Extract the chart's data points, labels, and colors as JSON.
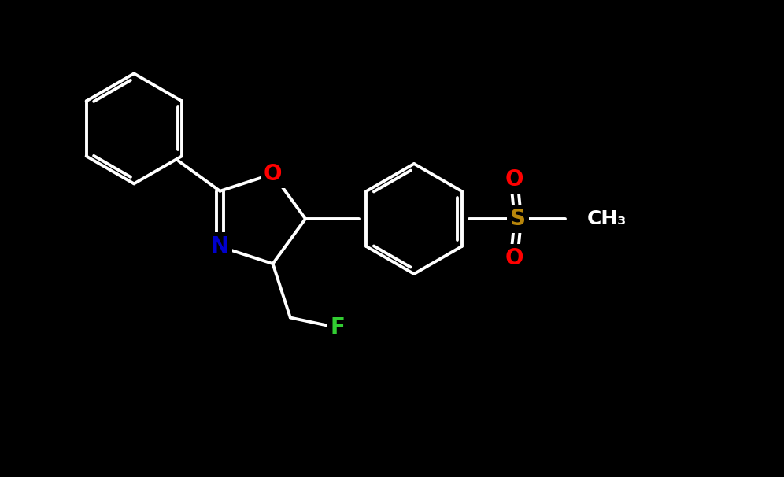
{
  "background_color": "#000000",
  "bond_color": "#ffffff",
  "atom_colors": {
    "O": "#ff0000",
    "N": "#0000cd",
    "S": "#b8860b",
    "F": "#32cd32"
  },
  "bond_width": 2.8,
  "font_size_atom": 20,
  "figsize": [
    9.96,
    6.06
  ],
  "dpi": 100,
  "xlim": [
    0,
    9.96
  ],
  "ylim": [
    0,
    6.06
  ]
}
